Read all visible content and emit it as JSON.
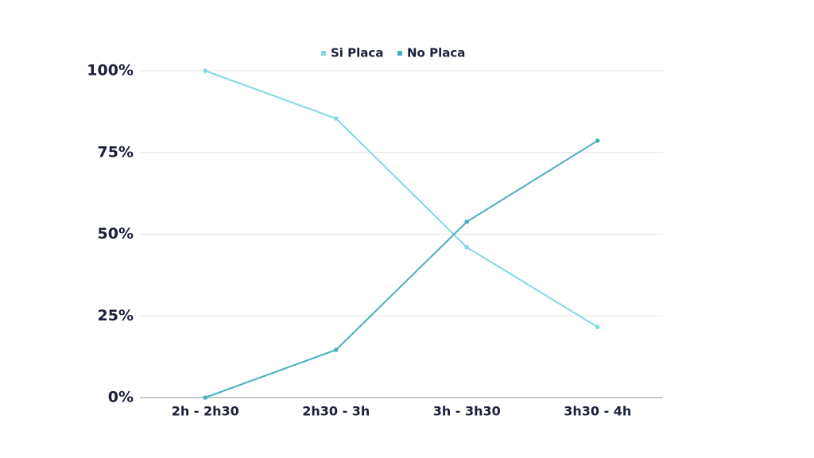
{
  "chart_data": {
    "type": "line",
    "categories": [
      "2h - 2h30",
      "2h30 - 3h",
      "3h - 3h30",
      "3h30 - 4h"
    ],
    "series": [
      {
        "name": "Si Placa",
        "color": "#80d9e4",
        "values": [
          100,
          85.4,
          46,
          21.6
        ]
      },
      {
        "name": "No Placa",
        "color": "#4aaebf",
        "values": [
          0,
          14.6,
          53.8,
          78.6
        ]
      }
    ],
    "ylim": [
      0,
      100
    ],
    "yticks": [
      {
        "value": 0,
        "label": "0%"
      },
      {
        "value": 25,
        "label": "25%"
      },
      {
        "value": 50,
        "label": "50%"
      },
      {
        "value": 75,
        "label": "75%"
      },
      {
        "value": 100,
        "label": "100%"
      }
    ],
    "grid": true,
    "legend": "top"
  }
}
